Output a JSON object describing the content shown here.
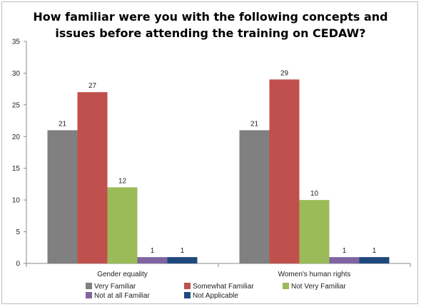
{
  "chart_data": {
    "type": "bar",
    "title": "How familiar were you with the following concepts and issues before attending the training on CEDAW?",
    "categories": [
      "Gender equality",
      "Women's human rights"
    ],
    "series": [
      {
        "name": "Very Familiar",
        "color": "#808080",
        "values": [
          21,
          21
        ]
      },
      {
        "name": "Somewhat Familiar",
        "color": "#c0504d",
        "values": [
          27,
          29
        ]
      },
      {
        "name": "Not Very Familiar",
        "color": "#9bbb59",
        "values": [
          12,
          10
        ]
      },
      {
        "name": "Not at all Familiar",
        "color": "#8064a2",
        "values": [
          1,
          1
        ]
      },
      {
        "name": "Not Applicable",
        "color": "#1f497d",
        "values": [
          1,
          1
        ]
      }
    ],
    "ylim": [
      0,
      35
    ],
    "yticks": [
      0,
      5,
      10,
      15,
      20,
      25,
      30,
      35
    ],
    "grid": false,
    "legend": "bottom"
  }
}
